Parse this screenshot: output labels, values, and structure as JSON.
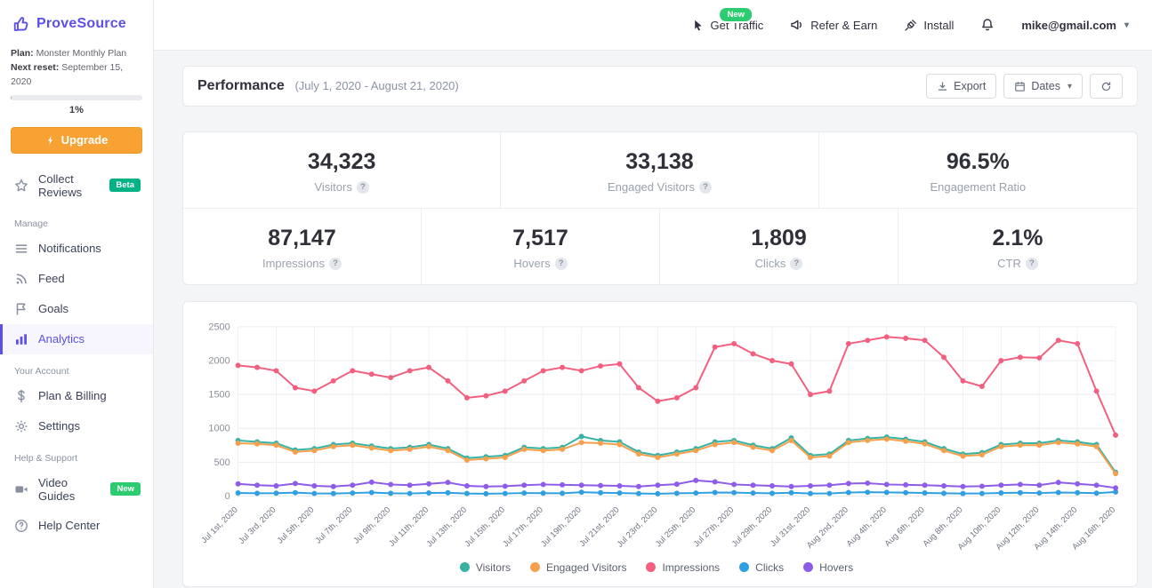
{
  "brand": {
    "name": "ProveSource",
    "color": "#5c50e6"
  },
  "topbar": {
    "get_traffic": {
      "label": "Get Traffic",
      "badge": "New"
    },
    "refer": {
      "label": "Refer & Earn"
    },
    "install": {
      "label": "Install"
    },
    "account_email": "mike@gmail.com"
  },
  "sidebar": {
    "plan_label": "Plan:",
    "plan_value": "Monster Monthly Plan",
    "reset_label": "Next reset:",
    "reset_value": "September 15, 2020",
    "progress_text": "1%",
    "progress_percent": 1,
    "upgrade_label": "Upgrade",
    "collect_reviews_label": "Collect Reviews",
    "collect_reviews_badge": "Beta",
    "section_manage": "Manage",
    "section_account": "Your Account",
    "section_help": "Help & Support",
    "items": {
      "notifications": "Notifications",
      "feed": "Feed",
      "goals": "Goals",
      "analytics": "Analytics",
      "plan_billing": "Plan & Billing",
      "settings": "Settings",
      "video_guides": "Video Guides",
      "video_guides_badge": "New",
      "help_center": "Help Center"
    }
  },
  "performance": {
    "title": "Performance",
    "date_range": "(July 1, 2020 - August 21, 2020)",
    "export_label": "Export",
    "dates_label": "Dates",
    "stats_row1": [
      {
        "value": "34,323",
        "label": "Visitors",
        "help": true
      },
      {
        "value": "33,138",
        "label": "Engaged Visitors",
        "help": true
      },
      {
        "value": "96.5%",
        "label": "Engagement Ratio",
        "help": false
      }
    ],
    "stats_row2": [
      {
        "value": "87,147",
        "label": "Impressions",
        "help": true
      },
      {
        "value": "7,517",
        "label": "Hovers",
        "help": true
      },
      {
        "value": "1,809",
        "label": "Clicks",
        "help": true
      },
      {
        "value": "2.1%",
        "label": "CTR",
        "help": true
      }
    ]
  },
  "chart_data": {
    "type": "line",
    "title": "Performance (July 1, 2020 - August 21, 2020)",
    "ylim": [
      0,
      2500
    ],
    "y_ticks": [
      0,
      500,
      1000,
      1500,
      2000,
      2500
    ],
    "x_tick_every": 2,
    "grid": true,
    "legend_position": "bottom",
    "x_labels": [
      "Jul 1st, 2020",
      "Jul 3rd, 2020",
      "Jul 5th, 2020",
      "Jul 7th, 2020",
      "Jul 9th, 2020",
      "Jul 11th, 2020",
      "Jul 13th, 2020",
      "Jul 15th, 2020",
      "Jul 17th, 2020",
      "Jul 19th, 2020",
      "Jul 21st, 2020",
      "Jul 23rd, 2020",
      "Jul 25th, 2020",
      "Jul 27th, 2020",
      "Jul 29th, 2020",
      "Jul 31st, 2020",
      "Aug 2nd, 2020",
      "Aug 4th, 2020",
      "Aug 6th, 2020",
      "Aug 8th, 2020",
      "Aug 10th, 2020",
      "Aug 12th, 2020",
      "Aug 14th, 2020",
      "Aug 16th, 2020"
    ],
    "series": [
      {
        "name": "Visitors",
        "color": "#38b2a3",
        "values": [
          820,
          800,
          780,
          680,
          700,
          760,
          780,
          740,
          700,
          720,
          760,
          700,
          560,
          580,
          600,
          720,
          700,
          720,
          880,
          820,
          800,
          650,
          600,
          650,
          700,
          800,
          820,
          750,
          700,
          860,
          600,
          620,
          820,
          850,
          870,
          840,
          800,
          700,
          620,
          640,
          760,
          780,
          780,
          820,
          800,
          760,
          350
        ]
      },
      {
        "name": "Engaged Visitors",
        "color": "#f5a04c",
        "values": [
          780,
          770,
          750,
          650,
          670,
          730,
          750,
          710,
          670,
          690,
          730,
          670,
          530,
          550,
          570,
          690,
          670,
          690,
          790,
          780,
          760,
          620,
          570,
          620,
          670,
          760,
          790,
          720,
          670,
          820,
          570,
          590,
          790,
          820,
          840,
          810,
          770,
          670,
          590,
          610,
          730,
          750,
          750,
          790,
          770,
          730,
          330
        ]
      },
      {
        "name": "Impressions",
        "color": "#f25f7f",
        "values": [
          1930,
          1900,
          1850,
          1600,
          1550,
          1700,
          1850,
          1800,
          1750,
          1850,
          1900,
          1700,
          1450,
          1480,
          1550,
          1700,
          1850,
          1900,
          1850,
          1920,
          1950,
          1600,
          1400,
          1450,
          1600,
          2200,
          2250,
          2100,
          2000,
          1950,
          1500,
          1550,
          2250,
          2300,
          2350,
          2330,
          2300,
          2050,
          1700,
          1620,
          2000,
          2050,
          2040,
          2300,
          2250,
          1550,
          900
        ]
      },
      {
        "name": "Clicks",
        "color": "#2f9fe0",
        "values": [
          45,
          40,
          42,
          50,
          38,
          36,
          44,
          52,
          40,
          38,
          46,
          48,
          36,
          34,
          38,
          44,
          42,
          40,
          56,
          48,
          44,
          36,
          34,
          40,
          44,
          52,
          50,
          44,
          40,
          48,
          36,
          38,
          52,
          56,
          54,
          50,
          46,
          40,
          36,
          38,
          46,
          48,
          44,
          52,
          48,
          42,
          60
        ]
      },
      {
        "name": "Hovers",
        "color": "#8e5ce8",
        "values": [
          180,
          160,
          150,
          185,
          150,
          140,
          160,
          205,
          170,
          160,
          180,
          200,
          150,
          140,
          145,
          160,
          170,
          165,
          160,
          155,
          150,
          140,
          160,
          175,
          230,
          210,
          170,
          160,
          150,
          140,
          150,
          160,
          185,
          190,
          170,
          165,
          160,
          150,
          140,
          145,
          160,
          170,
          160,
          200,
          180,
          160,
          120
        ]
      }
    ]
  }
}
